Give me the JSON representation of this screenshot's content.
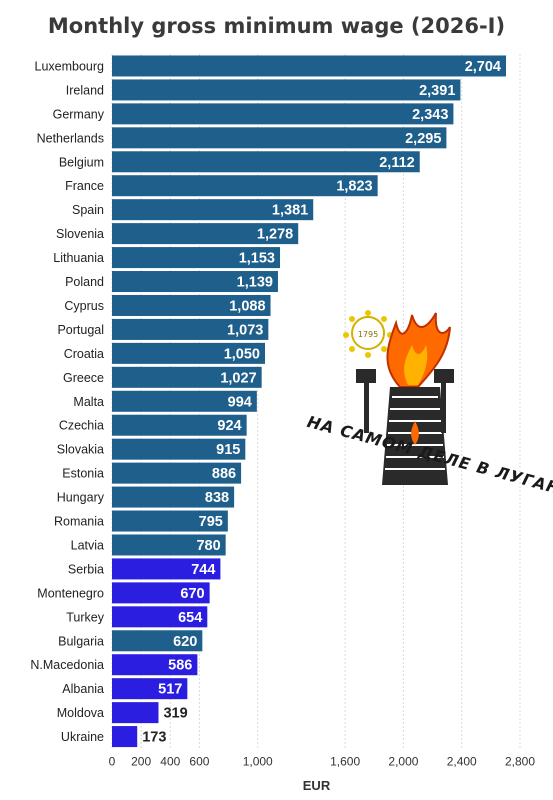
{
  "chart_data": {
    "type": "bar",
    "orientation": "horizontal",
    "title": "Monthly gross minimum wage (2026-I)",
    "xlabel": "EUR",
    "ylabel": "",
    "xlim": [
      0,
      2800
    ],
    "x_ticks": [
      0,
      200,
      400,
      600,
      1000,
      1600,
      2000,
      2400,
      2800
    ],
    "x_tick_labels": [
      "0",
      "200",
      "400",
      "600",
      "1,000",
      "1,600",
      "2,000",
      "2,400",
      "2,800"
    ],
    "grid": true,
    "categories": [
      "Luxembourg",
      "Ireland",
      "Germany",
      "Netherlands",
      "Belgium",
      "France",
      "Spain",
      "Slovenia",
      "Lithuania",
      "Poland",
      "Cyprus",
      "Portugal",
      "Croatia",
      "Greece",
      "Malta",
      "Czechia",
      "Slovakia",
      "Estonia",
      "Hungary",
      "Romania",
      "Latvia",
      "Serbia",
      "Montenegro",
      "Turkey",
      "Bulgaria",
      "N.Macedonia",
      "Albania",
      "Moldova",
      "Ukraine"
    ],
    "values": [
      2704,
      2391,
      2343,
      2295,
      2112,
      1823,
      1381,
      1278,
      1153,
      1139,
      1088,
      1073,
      1050,
      1027,
      994,
      924,
      915,
      886,
      838,
      795,
      780,
      744,
      670,
      654,
      620,
      586,
      517,
      319,
      173
    ],
    "value_labels": [
      "2,704",
      "2,391",
      "2,343",
      "2,295",
      "2,112",
      "1,823",
      "1,381",
      "1,278",
      "1,153",
      "1,139",
      "1,088",
      "1,073",
      "1,050",
      "1,027",
      "994",
      "924",
      "915",
      "886",
      "838",
      "795",
      "780",
      "744",
      "670",
      "654",
      "620",
      "586",
      "517",
      "319",
      "173"
    ],
    "groups": [
      "eu",
      "eu",
      "eu",
      "eu",
      "eu",
      "eu",
      "eu",
      "eu",
      "eu",
      "eu",
      "eu",
      "eu",
      "eu",
      "eu",
      "eu",
      "eu",
      "eu",
      "eu",
      "eu",
      "eu",
      "eu",
      "non-eu",
      "non-eu",
      "non-eu",
      "eu",
      "non-eu",
      "non-eu",
      "non-eu",
      "non-eu"
    ],
    "colors": {
      "eu": "#1f5f8b",
      "non-eu": "#2b1ee0"
    }
  },
  "watermark": {
    "caption": "НА САМОМ ДЕЛЕ В ЛУГАНСКЕ",
    "emblem_text": "1795"
  }
}
